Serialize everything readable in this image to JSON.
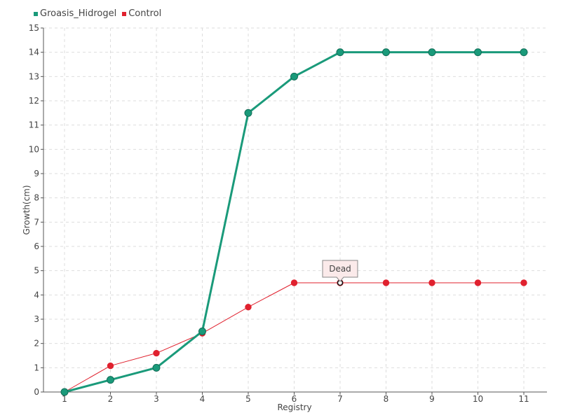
{
  "chart_data": {
    "type": "line",
    "title": "",
    "xlabel": "Registry",
    "ylabel": "Growth(cm)",
    "categories": [
      "1",
      "2",
      "3",
      "4",
      "5",
      "6",
      "7",
      "8",
      "9",
      "10",
      "11"
    ],
    "ylim": [
      0,
      15
    ],
    "yticks": [
      "0",
      "1",
      "2",
      "3",
      "4",
      "5",
      "6",
      "7",
      "8",
      "9",
      "10",
      "11",
      "12",
      "13",
      "14",
      "15"
    ],
    "grid": true,
    "legend_position": "top-left",
    "series": [
      {
        "name": "Groasis_Hidrogel",
        "color": "#1a9a7a",
        "values": [
          0,
          0.5,
          1.0,
          2.5,
          11.5,
          13.0,
          14.0,
          14.0,
          14.0,
          14.0,
          14.0
        ]
      },
      {
        "name": "Control",
        "color": "#e0212e",
        "values": [
          0,
          1.08,
          1.6,
          2.42,
          3.5,
          4.5,
          4.5,
          4.5,
          4.5,
          4.5,
          4.5
        ]
      }
    ],
    "annotations": [
      {
        "text": "Dead",
        "series": 1,
        "index": 6
      }
    ]
  }
}
